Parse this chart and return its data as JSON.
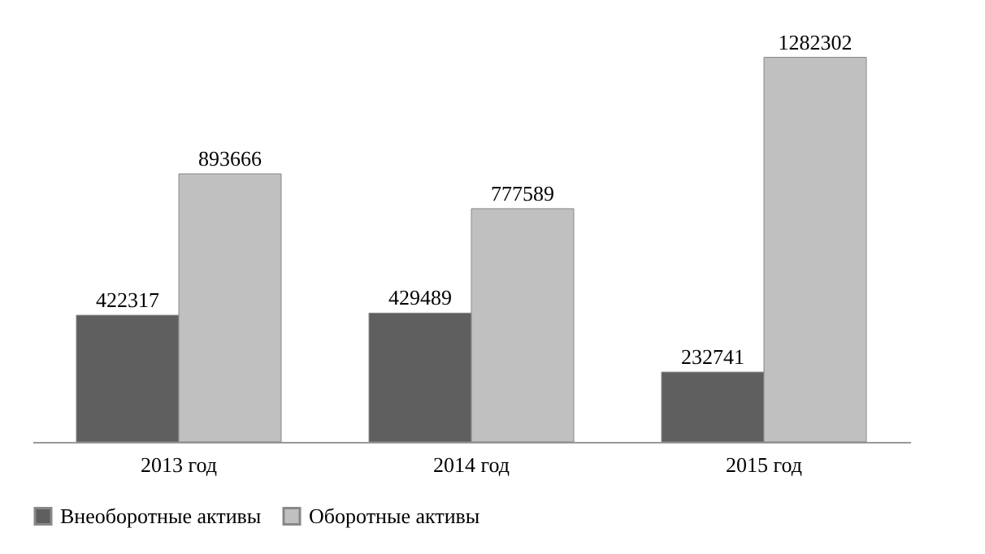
{
  "chart_data": {
    "type": "bar",
    "categories": [
      "2013 год",
      "2014 год",
      "2015 год"
    ],
    "series": [
      {
        "name": "Внеоборотные активы",
        "color": "#5f5f5f",
        "values": [
          422317,
          429489,
          232741
        ]
      },
      {
        "name": "Оборотные активы",
        "color": "#c0c0c0",
        "values": [
          893666,
          777589,
          1282302
        ]
      }
    ],
    "data_labels": true,
    "legend": "bottom"
  }
}
